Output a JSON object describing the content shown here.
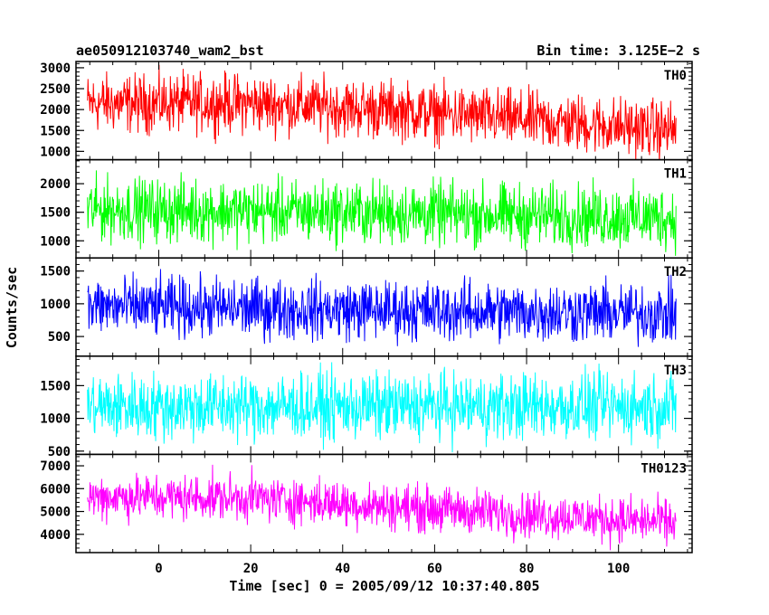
{
  "header": {
    "left_title": "ae050912103740_wam2_bst",
    "right_title": "Bin time: 3.125E−2 s"
  },
  "chart_data": {
    "type": "line",
    "xlabel": "Time [sec] 0 = 2005/09/12 10:37:40.805",
    "ylabel": "Counts/sec",
    "xlim": [
      -18,
      116
    ],
    "x_ticks": [
      0,
      20,
      40,
      60,
      80,
      100
    ],
    "x_minor_step": 5,
    "data_x_range": [
      -15.5,
      112.5
    ],
    "bin_time_s": 0.03125,
    "panels": [
      {
        "name": "TH0",
        "color": "#ff0000",
        "ylim": [
          800,
          3150
        ],
        "yticks": [
          1000,
          1500,
          2000,
          2500,
          3000
        ],
        "trend_mean": [
          [
            -15.5,
            2150
          ],
          [
            20,
            2150
          ],
          [
            50,
            2000
          ],
          [
            80,
            1750
          ],
          [
            112.5,
            1500
          ]
        ],
        "spread": 380
      },
      {
        "name": "TH1",
        "color": "#00ff00",
        "ylim": [
          700,
          2420
        ],
        "yticks": [
          1000,
          1500,
          2000
        ],
        "trend_mean": [
          [
            -15.5,
            1550
          ],
          [
            40,
            1500
          ],
          [
            112.5,
            1400
          ]
        ],
        "spread": 300
      },
      {
        "name": "TH2",
        "color": "#0000ff",
        "ylim": [
          200,
          1700
        ],
        "yticks": [
          500,
          1000,
          1500
        ],
        "trend_mean": [
          [
            -15.5,
            960
          ],
          [
            50,
            900
          ],
          [
            112.5,
            850
          ]
        ],
        "spread": 250
      },
      {
        "name": "TH3",
        "color": "#00ffff",
        "ylim": [
          450,
          1950
        ],
        "yticks": [
          500,
          1000,
          1500
        ],
        "trend_mean": [
          [
            -15.5,
            1180
          ],
          [
            112.5,
            1180
          ]
        ],
        "spread": 280
      },
      {
        "name": "TH0123",
        "color": "#ff00ff",
        "ylim": [
          3200,
          7500
        ],
        "yticks": [
          4000,
          5000,
          6000,
          7000
        ],
        "trend_mean": [
          [
            -15.5,
            5650
          ],
          [
            20,
            5600
          ],
          [
            60,
            5100
          ],
          [
            112.5,
            4500
          ]
        ],
        "spread": 550
      }
    ]
  }
}
